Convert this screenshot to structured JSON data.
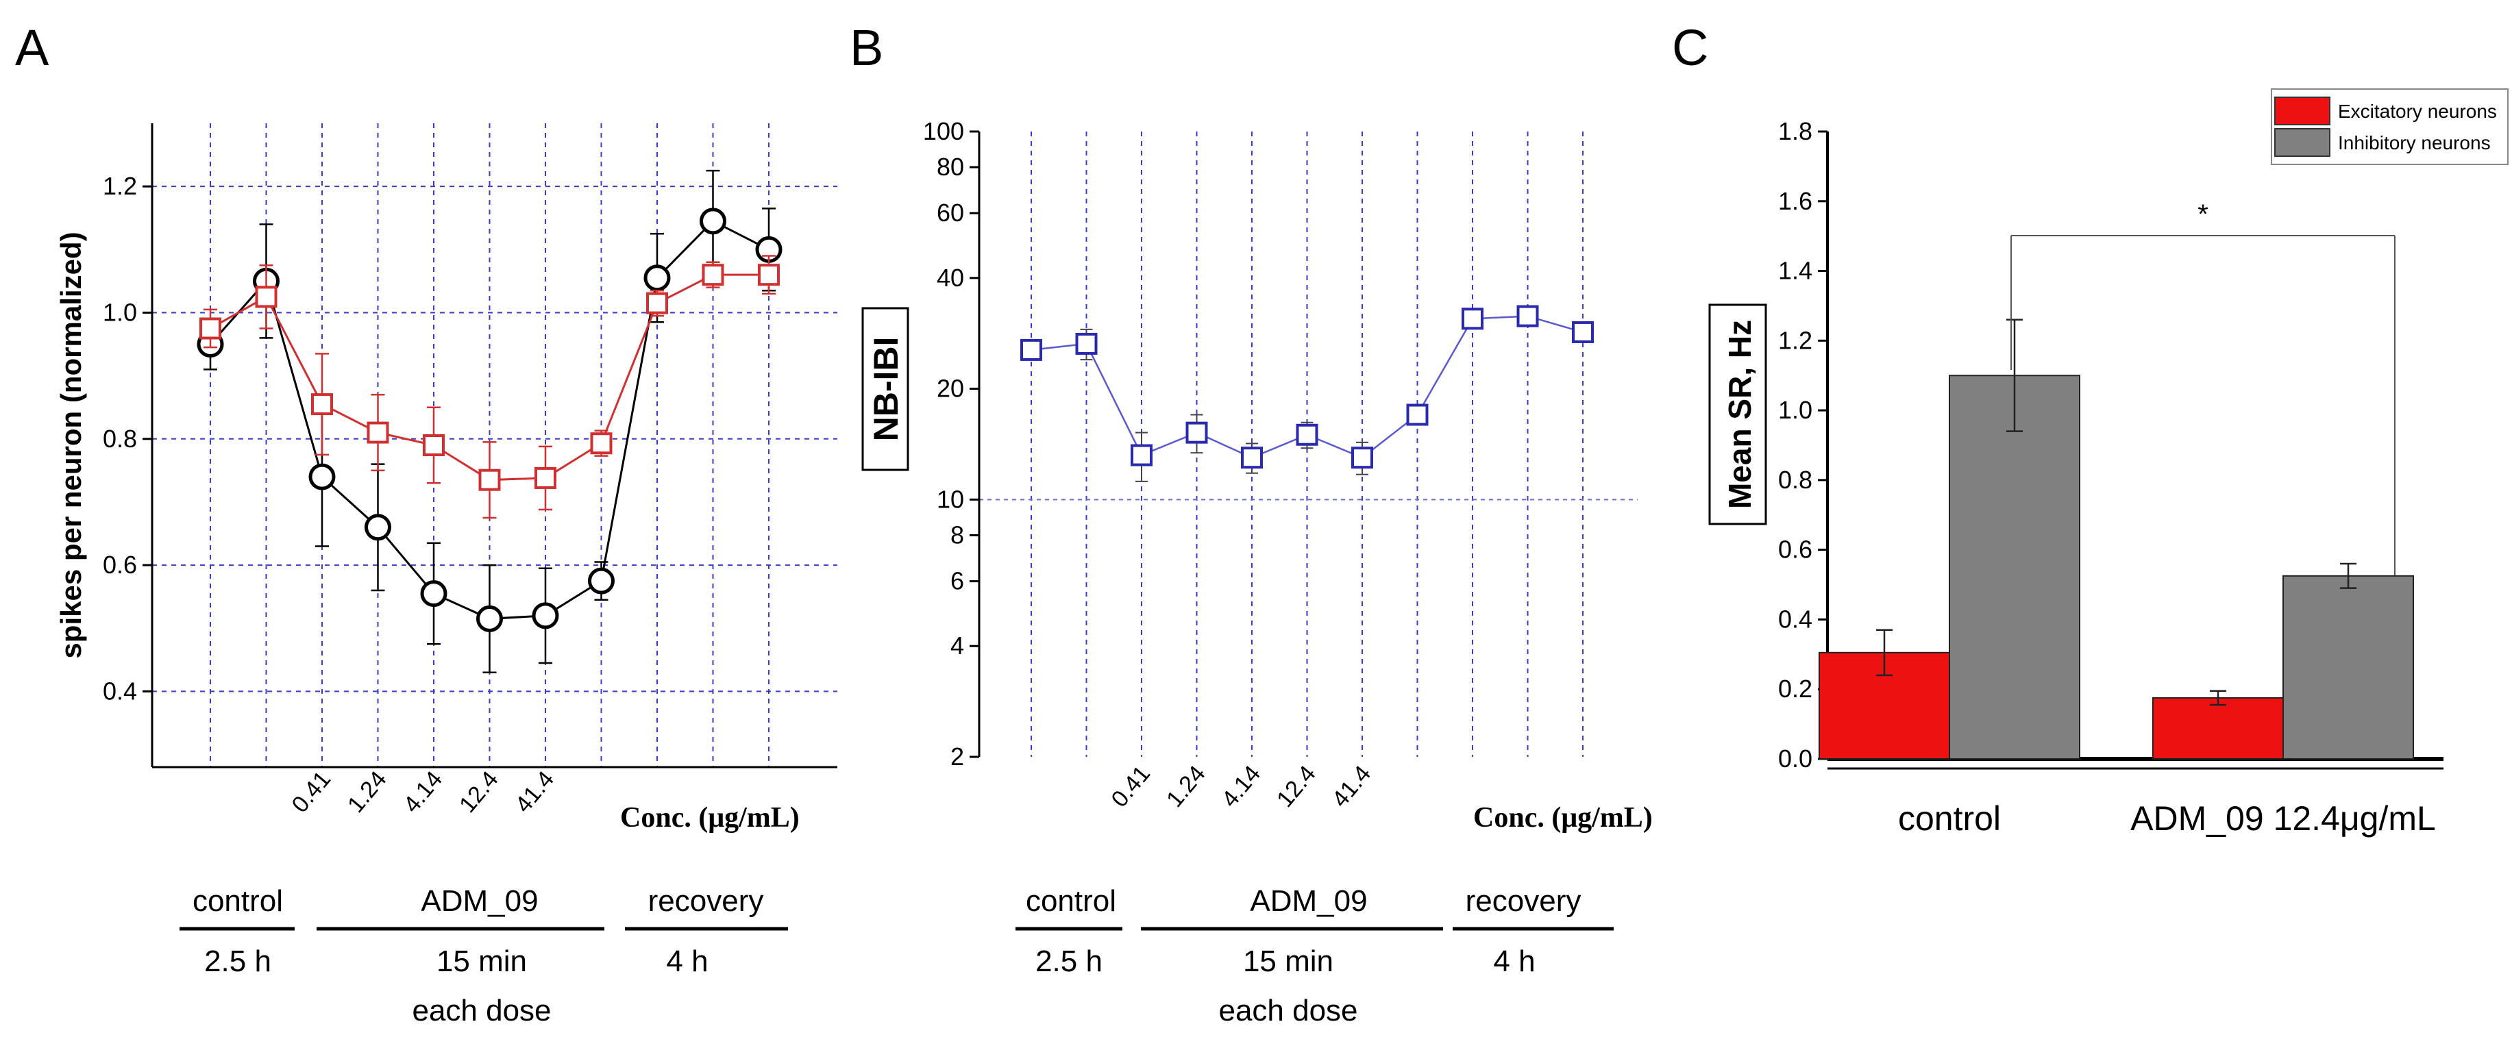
{
  "panels": {
    "a": "A",
    "b": "B",
    "c": "C"
  },
  "timeline": {
    "control": "control",
    "control_duration": "2.5 h",
    "drug": "ADM_09",
    "drug_duration_1": "15 min",
    "drug_duration_2": "each dose",
    "recovery": "recovery",
    "recovery_duration": "4 h"
  },
  "chart_data": [
    {
      "id": "A",
      "type": "line",
      "ylabel": "spikes per neuron (normalized)",
      "xlabel": "Conc. (μg/mL)",
      "ylim": [
        0.28,
        1.3
      ],
      "yticks": [
        "0.4",
        "0.6",
        "0.8",
        "1.0",
        "1.2"
      ],
      "x_tick_labels": [
        "0.41",
        "1.24",
        "4.14",
        "12.4",
        "41.4"
      ],
      "grid": true,
      "series": [
        {
          "name": "black circles",
          "color": "#000000",
          "marker": "circle",
          "values": [
            0.95,
            1.05,
            0.74,
            0.66,
            0.555,
            0.515,
            0.52,
            0.575,
            1.055,
            1.145,
            1.1
          ],
          "errors": [
            0.04,
            0.09,
            0.11,
            0.1,
            0.08,
            0.085,
            0.075,
            0.03,
            0.07,
            0.08,
            0.065
          ]
        },
        {
          "name": "red squares",
          "color": "#d03030",
          "marker": "square",
          "values": [
            0.975,
            1.025,
            0.855,
            0.81,
            0.79,
            0.735,
            0.738,
            0.793,
            1.015,
            1.06,
            1.06
          ],
          "errors": [
            0.03,
            0.05,
            0.08,
            0.06,
            0.06,
            0.06,
            0.05,
            0.02,
            0.02,
            0.02,
            0.03
          ]
        }
      ]
    },
    {
      "id": "B",
      "type": "line",
      "ylabel": "NB-IBI",
      "xlabel": "Conc. (μg/mL)",
      "yscale": "log",
      "ylim": [
        2,
        100
      ],
      "yticks": [
        "2",
        "4",
        "6",
        "8",
        "10",
        "20",
        "40",
        "60",
        "80",
        "100"
      ],
      "x_tick_labels": [
        "0.41",
        "1.24",
        "4.14",
        "12.4",
        "41.4"
      ],
      "reference_line": 10,
      "grid": true,
      "series": [
        {
          "name": "blue squares",
          "color": "#2a2ab0",
          "marker": "square",
          "values": [
            25.5,
            26.5,
            13.2,
            15.2,
            13.0,
            15.0,
            13.0,
            17.0,
            31.0,
            31.5,
            28.5
          ],
          "errors": [
            1.5,
            2.5,
            2.0,
            1.8,
            1.2,
            1.2,
            1.3,
            0.6,
            1.5,
            1.4,
            1.5
          ]
        }
      ]
    },
    {
      "id": "C",
      "type": "bar",
      "ylabel": "Mean SR, Hz",
      "ylim": [
        0,
        1.8
      ],
      "yticks": [
        "0.0",
        "0.2",
        "0.4",
        "0.6",
        "0.8",
        "1.0",
        "1.2",
        "1.4",
        "1.6",
        "1.8"
      ],
      "categories": [
        "control",
        "ADM_09 12.4μg/mL"
      ],
      "series": [
        {
          "name": "Excitatory neurons",
          "color": "#ee1111",
          "values": [
            0.305,
            0.175
          ],
          "errors": [
            0.065,
            0.02
          ]
        },
        {
          "name": "Inhibitory neurons",
          "color": "#808080",
          "values": [
            1.1,
            0.525
          ],
          "errors": [
            0.16,
            0.035
          ]
        }
      ],
      "significance": "*",
      "legend_position": "top-right"
    }
  ]
}
